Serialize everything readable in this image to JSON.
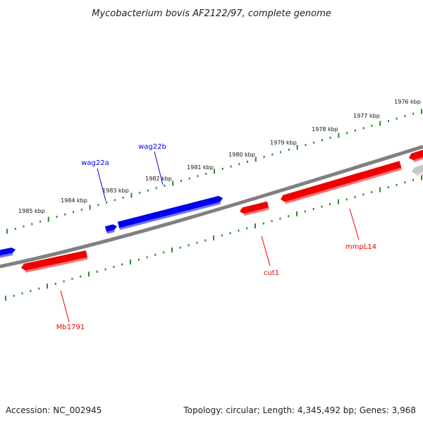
{
  "title": "Mycobacterium bovis AF2122/97, complete genome",
  "footer": {
    "accession": "Accession: NC_002945",
    "summary": "Topology: circular; Length: 4,345,492 bp; Genes: 3,968"
  },
  "colors": {
    "forward": "#0000ee",
    "reverse": "#ee0000",
    "backbone": "#808080",
    "ticks": "#2a8a2a",
    "other": "#c8c8c8"
  },
  "scale": [
    {
      "label": "1976 kbp"
    },
    {
      "label": "1977 kbp"
    },
    {
      "label": "1978 kbp"
    },
    {
      "label": "1979 kbp"
    },
    {
      "label": "1980 kbp"
    },
    {
      "label": "1981 kbp"
    },
    {
      "label": "1982 kbp"
    },
    {
      "label": "1983 kbp"
    },
    {
      "label": "1984 kbp"
    },
    {
      "label": "1985 kbp"
    }
  ],
  "genes": {
    "forward": [
      {
        "label": "wag22a"
      },
      {
        "label": "wag22b"
      }
    ],
    "reverse": [
      {
        "label": "Mb1791"
      },
      {
        "label": "cut1"
      },
      {
        "label": "mmpL14"
      }
    ]
  }
}
